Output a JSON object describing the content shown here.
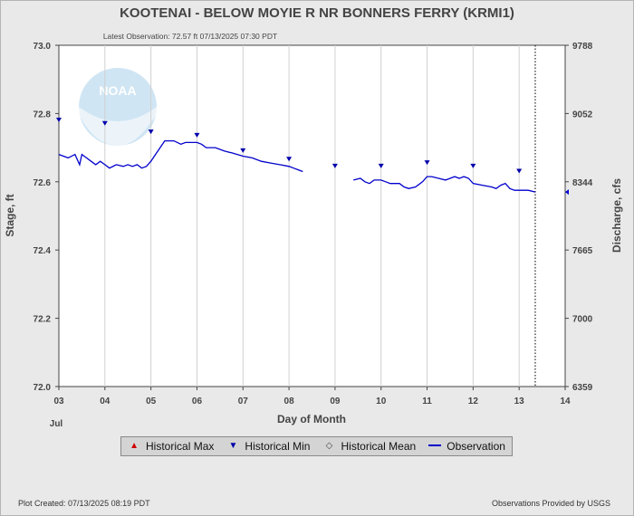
{
  "chart_data": {
    "type": "line",
    "title": "KOOTENAI - BELOW MOYIE R NR BONNERS FERRY  (KRMI1)",
    "subtitle": "Latest Observation: 72.57 ft 07/13/2025 07:30 PDT",
    "xlabel": "Day of Month",
    "ylabel": "Stage, ft",
    "y2label": "Discharge, cfs",
    "x_month_label": "Jul",
    "xlim": [
      3,
      14
    ],
    "ylim": [
      72.0,
      73.0
    ],
    "x_ticks": [
      "03",
      "04",
      "05",
      "06",
      "07",
      "08",
      "09",
      "10",
      "11",
      "12",
      "13",
      "14"
    ],
    "y_ticks": [
      "72.0",
      "72.2",
      "72.4",
      "72.6",
      "72.8",
      "73.0"
    ],
    "y2_ticks": [
      "6359",
      "7000",
      "7665",
      "8344",
      "9052",
      "9788"
    ],
    "grid": true,
    "legend_position": "bottom",
    "current_time_marker": 13.35,
    "series": [
      {
        "name": "Observation",
        "color": "#0000cc",
        "segments": [
          [
            [
              3.0,
              72.68
            ],
            [
              3.2,
              72.67
            ],
            [
              3.35,
              72.68
            ],
            [
              3.45,
              72.65
            ],
            [
              3.5,
              72.68
            ],
            [
              3.6,
              72.67
            ],
            [
              3.7,
              72.66
            ],
            [
              3.8,
              72.65
            ],
            [
              3.9,
              72.66
            ],
            [
              4.0,
              72.65
            ],
            [
              4.1,
              72.64
            ],
            [
              4.25,
              72.65
            ],
            [
              4.4,
              72.645
            ],
            [
              4.5,
              72.65
            ],
            [
              4.6,
              72.645
            ],
            [
              4.7,
              72.65
            ],
            [
              4.8,
              72.64
            ],
            [
              4.9,
              72.645
            ],
            [
              5.0,
              72.66
            ],
            [
              5.1,
              72.68
            ],
            [
              5.2,
              72.7
            ],
            [
              5.3,
              72.72
            ],
            [
              5.5,
              72.72
            ],
            [
              5.65,
              72.71
            ],
            [
              5.75,
              72.715
            ],
            [
              6.0,
              72.715
            ],
            [
              6.1,
              72.71
            ],
            [
              6.2,
              72.7
            ],
            [
              6.4,
              72.7
            ],
            [
              6.6,
              72.69
            ],
            [
              6.75,
              72.685
            ],
            [
              7.0,
              72.675
            ],
            [
              7.2,
              72.67
            ],
            [
              7.4,
              72.66
            ],
            [
              7.6,
              72.655
            ],
            [
              7.8,
              72.65
            ],
            [
              8.0,
              72.645
            ],
            [
              8.1,
              72.64
            ],
            [
              8.2,
              72.635
            ],
            [
              8.3,
              72.63
            ]
          ],
          [
            [
              9.4,
              72.605
            ],
            [
              9.55,
              72.61
            ],
            [
              9.65,
              72.6
            ],
            [
              9.75,
              72.595
            ],
            [
              9.85,
              72.605
            ],
            [
              10.0,
              72.605
            ],
            [
              10.1,
              72.6
            ],
            [
              10.2,
              72.595
            ],
            [
              10.4,
              72.595
            ],
            [
              10.5,
              72.585
            ],
            [
              10.6,
              72.58
            ],
            [
              10.75,
              72.585
            ],
            [
              10.9,
              72.6
            ],
            [
              11.0,
              72.615
            ],
            [
              11.1,
              72.615
            ],
            [
              11.25,
              72.61
            ],
            [
              11.4,
              72.605
            ],
            [
              11.5,
              72.61
            ],
            [
              11.6,
              72.615
            ],
            [
              11.7,
              72.61
            ],
            [
              11.8,
              72.615
            ],
            [
              11.9,
              72.61
            ],
            [
              12.0,
              72.595
            ],
            [
              12.2,
              72.59
            ],
            [
              12.4,
              72.585
            ],
            [
              12.5,
              72.58
            ],
            [
              12.6,
              72.59
            ],
            [
              12.7,
              72.595
            ],
            [
              12.8,
              72.58
            ],
            [
              12.9,
              72.575
            ],
            [
              13.1,
              72.575
            ],
            [
              13.2,
              72.575
            ],
            [
              13.35,
              72.57
            ]
          ]
        ]
      },
      {
        "name": "Historical Min",
        "color": "#0000aa",
        "marker": "triangle-down",
        "points": [
          [
            3,
            72.78
          ],
          [
            4,
            72.77
          ],
          [
            5,
            72.745
          ],
          [
            6,
            72.735
          ],
          [
            7,
            72.69
          ],
          [
            8,
            72.665
          ],
          [
            9,
            72.645
          ],
          [
            10,
            72.645
          ],
          [
            11,
            72.655
          ],
          [
            12,
            72.645
          ],
          [
            13,
            72.63
          ]
        ]
      },
      {
        "name": "Historical Max",
        "color": "#cc0000",
        "marker": "triangle-up",
        "points": []
      },
      {
        "name": "Historical Mean",
        "color": "#444444",
        "marker": "diamond",
        "points": []
      }
    ]
  },
  "footer": {
    "created": "Plot Created: 07/13/2025 08:19 PDT",
    "provider": "Observations Provided by USGS"
  },
  "logo_text": "NOAA"
}
